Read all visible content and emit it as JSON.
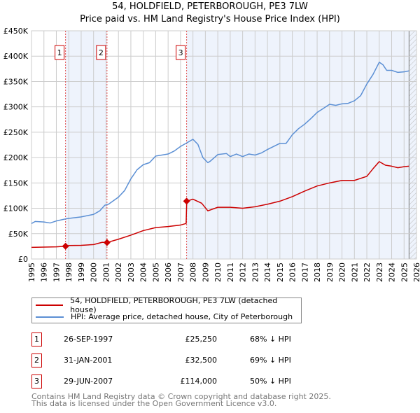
{
  "title": "54, HOLDFIELD, PETERBOROUGH, PE3 7LW",
  "subtitle": "Price paid vs. HM Land Registry's House Price Index (HPI)",
  "colors": {
    "property": "#cc0000",
    "hpi": "#5b8fd4",
    "shade": "#eef3fc"
  },
  "chart_data": {
    "type": "line",
    "title": "54, HOLDFIELD, PETERBOROUGH, PE3 7LW",
    "xlim": [
      1995,
      2026
    ],
    "ylim": [
      0,
      450000
    ],
    "x_ticks": [
      "1995",
      "1996",
      "1997",
      "1998",
      "1999",
      "2000",
      "2001",
      "2002",
      "2003",
      "2004",
      "2005",
      "2006",
      "2007",
      "2008",
      "2009",
      "2010",
      "2011",
      "2012",
      "2013",
      "2014",
      "2015",
      "2016",
      "2017",
      "2018",
      "2019",
      "2020",
      "2021",
      "2022",
      "2023",
      "2024",
      "2025",
      "2026"
    ],
    "y_ticks": [
      {
        "v": 0,
        "label": "£0"
      },
      {
        "v": 50000,
        "label": "£50K"
      },
      {
        "v": 100000,
        "label": "£100K"
      },
      {
        "v": 150000,
        "label": "£150K"
      },
      {
        "v": 200000,
        "label": "£200K"
      },
      {
        "v": 250000,
        "label": "£250K"
      },
      {
        "v": 300000,
        "label": "£300K"
      },
      {
        "v": 350000,
        "label": "£350K"
      },
      {
        "v": 400000,
        "label": "£400K"
      },
      {
        "v": 450000,
        "label": "£450K"
      }
    ],
    "grid": true,
    "series": [
      {
        "name": "54, HOLDFIELD, PETERBOROUGH, PE3 7LW (detached house)",
        "color": "#cc0000",
        "x": [
          1995,
          1996,
          1997,
          1997.74,
          1998,
          1999,
          2000,
          2000.7,
          2001.08,
          2002,
          2003,
          2004,
          2005,
          2006,
          2007,
          2007.45,
          2007.5,
          2008,
          2008.7,
          2009.2,
          2010,
          2011,
          2012,
          2013,
          2014,
          2015,
          2016,
          2017,
          2018,
          2019,
          2020,
          2021,
          2022,
          2022.5,
          2023,
          2023.5,
          2024,
          2024.5,
          2025,
          2025.4
        ],
        "y": [
          23000,
          23500,
          24000,
          25250,
          26500,
          27000,
          28500,
          33000,
          32500,
          39000,
          47000,
          56000,
          62000,
          64000,
          67000,
          70000,
          114000,
          118000,
          110000,
          95000,
          102000,
          102000,
          100000,
          103000,
          108000,
          114000,
          123000,
          134000,
          144000,
          150000,
          155000,
          155000,
          163000,
          178000,
          192000,
          185000,
          183000,
          180000,
          182000,
          183000
        ]
      },
      {
        "name": "HPI: Average price, detached house, City of Peterborough",
        "color": "#5b8fd4",
        "x": [
          1995,
          1995.3,
          1996,
          1996.5,
          1997,
          1997.74,
          1998,
          1999,
          2000,
          2000.5,
          2000.9,
          2001.2,
          2002,
          2002.5,
          2003,
          2003.5,
          2004,
          2004.5,
          2005,
          2005.5,
          2006,
          2006.5,
          2007,
          2007.5,
          2008,
          2008.4,
          2008.8,
          2009.2,
          2009.4,
          2010,
          2010.7,
          2011,
          2011.5,
          2012,
          2012.5,
          2013,
          2013.5,
          2014,
          2014.5,
          2015,
          2015.5,
          2016,
          2016.5,
          2017,
          2017.5,
          2018,
          2018.5,
          2019,
          2019.5,
          2020,
          2020.5,
          2021,
          2021.5,
          2022,
          2022.5,
          2023,
          2023.3,
          2023.6,
          2024,
          2024.5,
          2025,
          2025.4
        ],
        "y": [
          70000,
          74000,
          73000,
          71000,
          75000,
          79000,
          80000,
          83000,
          88000,
          95000,
          106000,
          108000,
          122000,
          135000,
          158000,
          176000,
          186000,
          190000,
          203000,
          205000,
          207000,
          213000,
          222000,
          229000,
          236000,
          226000,
          200000,
          190000,
          193000,
          206000,
          208000,
          202000,
          207000,
          202000,
          207000,
          205000,
          209000,
          216000,
          222000,
          228000,
          228000,
          245000,
          257000,
          266000,
          277000,
          289000,
          297000,
          305000,
          303000,
          306000,
          307000,
          312000,
          322000,
          345000,
          364000,
          388000,
          383000,
          372000,
          372000,
          368000,
          369000,
          371000
        ]
      }
    ],
    "sales": [
      {
        "label": "1",
        "x": 1997.74,
        "y": 25250
      },
      {
        "label": "2",
        "x": 2001.08,
        "y": 32500
      },
      {
        "label": "3",
        "x": 2007.49,
        "y": 114000
      }
    ],
    "legend_position": "below"
  },
  "legend": {
    "property": "54, HOLDFIELD, PETERBOROUGH, PE3 7LW (detached house)",
    "hpi": "HPI: Average price, detached house, City of Peterborough"
  },
  "transactions": [
    {
      "num": "1",
      "date": "26-SEP-1997",
      "price": "£25,250",
      "hpi": "68% ↓ HPI"
    },
    {
      "num": "2",
      "date": "31-JAN-2001",
      "price": "£32,500",
      "hpi": "69% ↓ HPI"
    },
    {
      "num": "3",
      "date": "29-JUN-2007",
      "price": "£114,000",
      "hpi": "50% ↓ HPI"
    }
  ],
  "footer": {
    "line1": "Contains HM Land Registry data © Crown copyright and database right 2025.",
    "line2": "This data is licensed under the Open Government Licence v3.0."
  }
}
